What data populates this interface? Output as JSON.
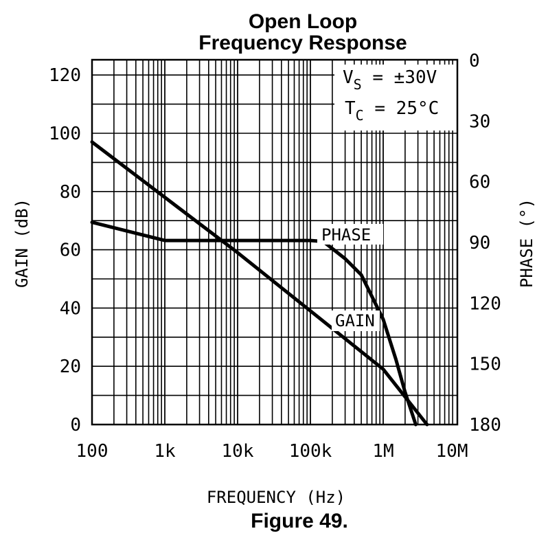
{
  "title_line1": "Open Loop",
  "title_line2": "Frequency Response",
  "caption": "Figure 49.",
  "annotations": {
    "vs_main": "V",
    "vs_sub": "S",
    "vs_rest": " = ±30V",
    "tc_main": "T",
    "tc_sub": "C",
    "tc_rest": " = 25°C"
  },
  "chart_data": {
    "type": "line",
    "title": "Open Loop Frequency Response",
    "xlabel": "FREQUENCY (Hz)",
    "ylabel": "GAIN (dB)",
    "y2label": "PHASE (°)",
    "xscale": "log",
    "xlim": [
      100,
      10000000
    ],
    "ylim": [
      0,
      125
    ],
    "y2lim": [
      180,
      0
    ],
    "x_ticks": [
      100,
      1000,
      10000,
      100000,
      1000000,
      10000000
    ],
    "x_tick_labels": [
      "100",
      "1k",
      "10k",
      "100k",
      "1M",
      "10M"
    ],
    "y_ticks": [
      0,
      20,
      40,
      60,
      80,
      100,
      120
    ],
    "y_tick_labels": [
      "0",
      "20",
      "40",
      "60",
      "80",
      "100",
      "120"
    ],
    "y2_ticks": [
      180,
      150,
      120,
      90,
      60,
      30,
      0
    ],
    "y2_tick_labels": [
      "180",
      "150",
      "120",
      "90",
      "60",
      "30",
      "0"
    ],
    "grid": true,
    "series": [
      {
        "name": "GAIN",
        "axis": "left",
        "x": [
          100,
          1000,
          10000,
          100000,
          1000000,
          4000000
        ],
        "y": [
          97,
          78,
          59,
          39,
          19,
          0
        ]
      },
      {
        "name": "PHASE",
        "axis": "right",
        "x": [
          100,
          1000,
          10000,
          100000,
          150000,
          300000,
          500000,
          1000000,
          1500000,
          2000000,
          2800000
        ],
        "y": [
          80,
          89,
          89,
          89,
          89.5,
          98,
          106,
          128,
          148,
          164,
          180
        ]
      }
    ],
    "series_labels": {
      "phase": "PHASE",
      "gain": "GAIN"
    }
  }
}
